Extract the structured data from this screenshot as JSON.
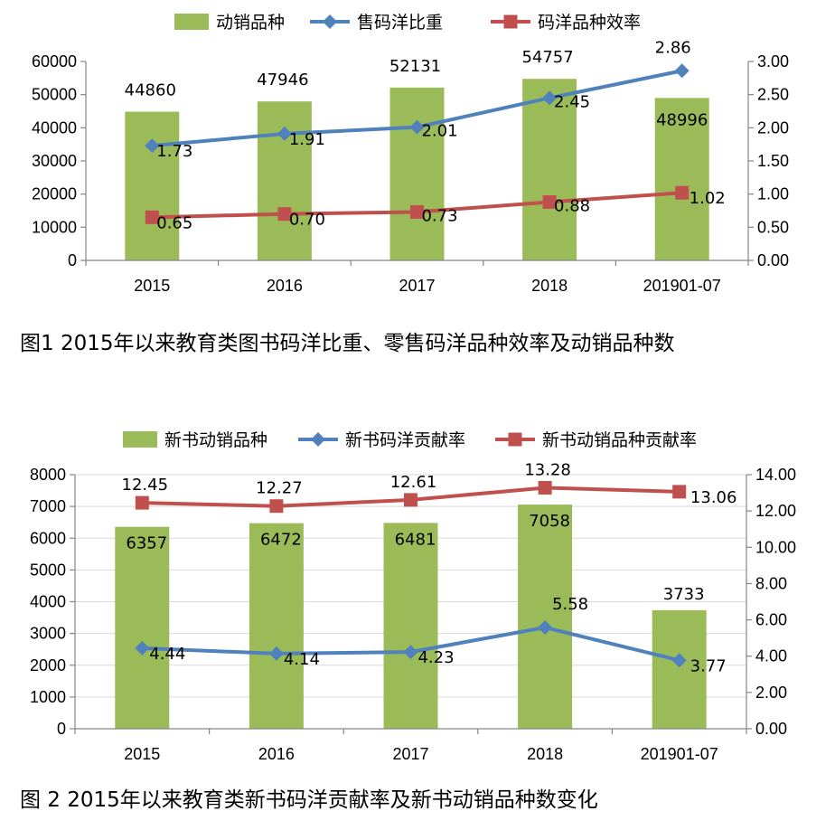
{
  "colors": {
    "bar": "#9bbb59",
    "line_blue": "#4f81bd",
    "line_red": "#c0504d",
    "axis": "#868686"
  },
  "chart_data": [
    {
      "type": "bar+line",
      "categories": [
        "2015",
        "2016",
        "2017",
        "2018",
        "201901-07"
      ],
      "legend": {
        "position": "top",
        "entries": [
          "动销品种",
          "售码洋比重",
          "码洋品种效率"
        ]
      },
      "y_left": {
        "ylim": [
          0,
          60000
        ],
        "ticks": [
          "0",
          "10000",
          "20000",
          "30000",
          "40000",
          "50000",
          "60000"
        ]
      },
      "y_right": {
        "ylim": [
          0,
          3
        ],
        "ticks": [
          "0.00",
          "0.50",
          "1.00",
          "1.50",
          "2.00",
          "2.50",
          "3.00"
        ]
      },
      "series": [
        {
          "name": "动销品种",
          "kind": "bar",
          "axis": "left",
          "values": [
            44860,
            47946,
            52131,
            54757,
            48996
          ],
          "labels": [
            "44860",
            "47946",
            "52131",
            "54757",
            "48996"
          ]
        },
        {
          "name": "售码洋比重",
          "kind": "line",
          "axis": "right",
          "values": [
            1.73,
            1.91,
            2.01,
            2.45,
            2.86
          ],
          "labels": [
            "1.73",
            "1.91",
            "2.01",
            "2.45",
            "2.86"
          ]
        },
        {
          "name": "码洋品种效率",
          "kind": "line",
          "axis": "right",
          "values": [
            0.65,
            0.7,
            0.73,
            0.88,
            1.02
          ],
          "labels": [
            "0.65",
            "0.70",
            "0.73",
            "0.88",
            "1.02"
          ]
        }
      ],
      "caption": "图1 2015年以来教育类图书码洋比重、零售码洋品种效率及动销品种数"
    },
    {
      "type": "bar+line",
      "categories": [
        "2015",
        "2016",
        "2017",
        "2018",
        "201901-07"
      ],
      "legend": {
        "position": "top",
        "entries": [
          "新书动销品种",
          "新书码洋贡献率",
          "新书动销品种贡献率"
        ]
      },
      "y_left": {
        "ylim": [
          0,
          8000
        ],
        "ticks": [
          "0",
          "1000",
          "2000",
          "3000",
          "4000",
          "5000",
          "6000",
          "7000",
          "8000"
        ]
      },
      "y_right": {
        "ylim": [
          0,
          14
        ],
        "ticks": [
          "0.00",
          "2.00",
          "4.00",
          "6.00",
          "8.00",
          "10.00",
          "12.00",
          "14.00"
        ]
      },
      "grid": "horizontal",
      "series": [
        {
          "name": "新书动销品种",
          "kind": "bar",
          "axis": "left",
          "values": [
            6357,
            6472,
            6481,
            7058,
            3733
          ],
          "labels": [
            "6357",
            "6472",
            "6481",
            "7058",
            "3733"
          ]
        },
        {
          "name": "新书码洋贡献率",
          "kind": "line",
          "axis": "right",
          "values": [
            4.44,
            4.14,
            4.23,
            5.58,
            3.77
          ],
          "labels": [
            "4.44",
            "4.14",
            "4.23",
            "5.58",
            "3.77"
          ]
        },
        {
          "name": "新书动销品种贡献率",
          "kind": "line",
          "axis": "right",
          "values": [
            12.45,
            12.27,
            12.61,
            13.28,
            13.06
          ],
          "labels": [
            "12.45",
            "12.27",
            "12.61",
            "13.28",
            "13.06"
          ]
        }
      ],
      "caption": "图 2  2015年以来教育类新书码洋贡献率及新书动销品种数变化"
    }
  ]
}
